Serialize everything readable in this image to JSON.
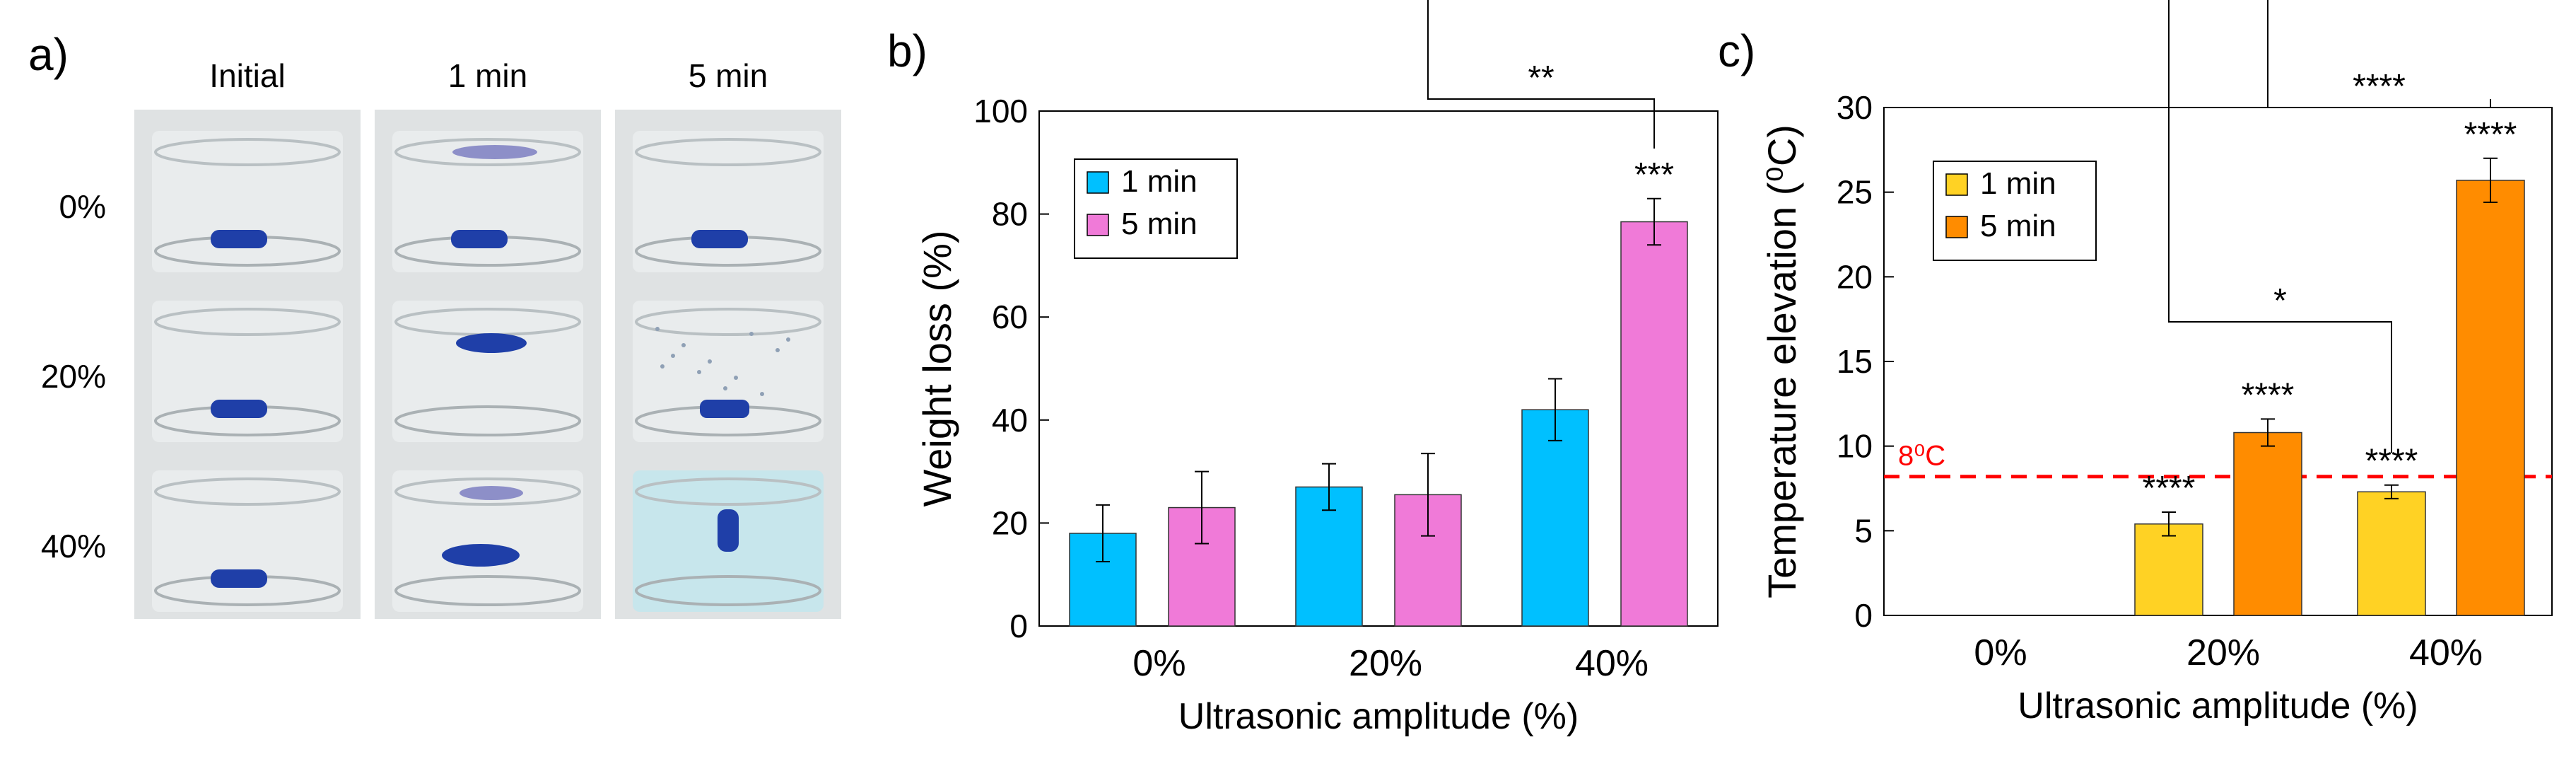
{
  "panels": {
    "a": {
      "letter": "a)",
      "columns": [
        "Initial",
        "1 min",
        "5 min"
      ],
      "rows": [
        "0%",
        "20%",
        "40%"
      ]
    },
    "b": {
      "letter": "b)"
    },
    "c": {
      "letter": "c)"
    }
  },
  "colors": {
    "one_min_b": "#00c0ff",
    "five_min_b": "#f07ad8",
    "one_min_c": "#ffd224",
    "five_min_c": "#ff8c00",
    "threshold_line": "#ff0000",
    "specimen": "#1f3fa8"
  },
  "chart_data": [
    {
      "type": "bar",
      "categories": [
        "0%",
        "20%",
        "40%"
      ],
      "series": [
        {
          "name": "1 min",
          "values": [
            18,
            27,
            42
          ],
          "errors": [
            5.5,
            4.5,
            6
          ]
        },
        {
          "name": "5 min",
          "values": [
            23,
            25.5,
            78.5
          ],
          "errors": [
            7,
            8,
            4.5
          ]
        }
      ],
      "xlabel": "Ultrasonic amplitude (%)",
      "ylabel": "Weight loss (%)",
      "ylim": [
        0,
        100
      ],
      "yticks": [
        "0",
        "20",
        "40",
        "60",
        "80",
        "100"
      ],
      "legend_position": "top-left",
      "annotations": {
        "bar_labels": [
          {
            "category": "40%",
            "series": "5 min",
            "text": "***"
          }
        ],
        "brackets": [
          {
            "from": {
              "category": "20%",
              "series": "5 min"
            },
            "to": {
              "category": "40%",
              "series": "5 min"
            },
            "text": "**"
          }
        ]
      }
    },
    {
      "type": "bar",
      "categories": [
        "0%",
        "20%",
        "40%"
      ],
      "series": [
        {
          "name": "1 min",
          "values": [
            0,
            5.4,
            7.3
          ],
          "errors": [
            0,
            0.7,
            0.4
          ]
        },
        {
          "name": "5 min",
          "values": [
            0,
            10.8,
            25.7
          ],
          "errors": [
            0,
            0.8,
            1.3
          ]
        }
      ],
      "xlabel": "Ultrasonic amplitude (%)",
      "ylabel": "Temperature elevation (⁰C)",
      "ylim": [
        0,
        30
      ],
      "yticks": [
        "0",
        "5",
        "10",
        "15",
        "20",
        "25",
        "30"
      ],
      "legend_position": "top-left",
      "threshold": {
        "value": 8.2,
        "label": "8⁰C"
      },
      "annotations": {
        "bar_labels": [
          {
            "category": "20%",
            "series": "1 min",
            "text": "****"
          },
          {
            "category": "20%",
            "series": "5 min",
            "text": "****"
          },
          {
            "category": "40%",
            "series": "1 min",
            "text": "****"
          },
          {
            "category": "40%",
            "series": "5 min",
            "text": "****"
          }
        ],
        "brackets": [
          {
            "from": {
              "category": "20%",
              "series": "1 min"
            },
            "to": {
              "category": "40%",
              "series": "1 min"
            },
            "text": "*"
          },
          {
            "from": {
              "category": "20%",
              "series": "5 min"
            },
            "to": {
              "category": "40%",
              "series": "5 min"
            },
            "text": "****"
          }
        ]
      }
    }
  ]
}
